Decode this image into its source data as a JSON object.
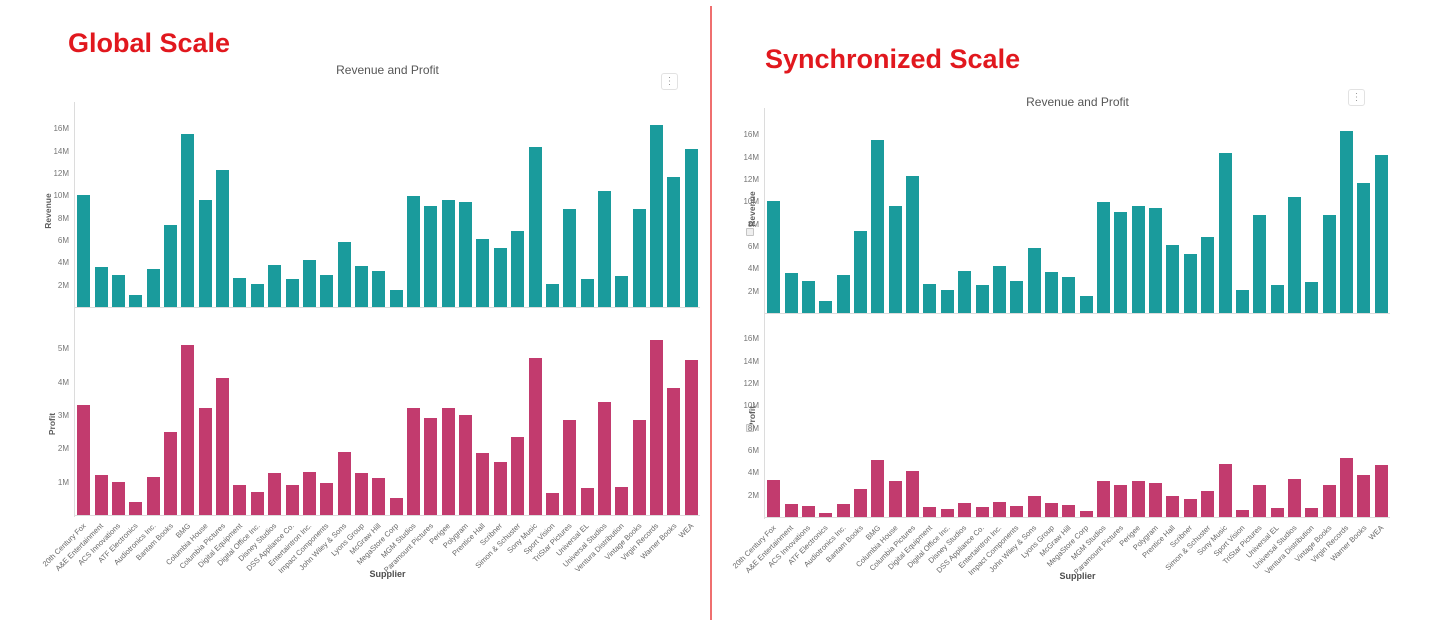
{
  "page": {
    "left_heading": "Global Scale",
    "right_heading": "Synchronized Scale",
    "menu_icon_glyph": "⋮"
  },
  "colors": {
    "revenue": "#1a9b9c",
    "profit": "#c23b6e",
    "heading_red": "#e1181e",
    "divider_red": "#ef6f6f"
  },
  "chart_data": [
    {
      "panel": "Global Scale",
      "type": "bar",
      "title": "Revenue and Profit",
      "xlabel": "Supplier",
      "legend": "none",
      "grid": false,
      "categories": [
        "20th Century Fox",
        "A&E Entertainment",
        "ACS Innovations",
        "ATF Electronics",
        "Audiotronics Inc.",
        "Bantam Books",
        "BMG",
        "Columbia House",
        "Columbia Pictures",
        "Digital Equipment",
        "Digital Office Inc.",
        "Disney Studios",
        "DSS Appliance Co.",
        "Entertaintron Inc.",
        "Impact Components",
        "John Wiley & Sons",
        "Lyons Group",
        "McGraw Hill",
        "MegaStore Corp",
        "MGM Studios",
        "Paramount Pictures",
        "Perigee",
        "Polygram",
        "Prentice Hall",
        "Scribner",
        "Simon & Schuster",
        "Sony Music",
        "Sport Vision",
        "TriStar Pictures",
        "Universal EL",
        "Universal Studios",
        "Ventura Distribution",
        "Vintage Books",
        "Virgin Records",
        "Warner Books",
        "WEA"
      ],
      "series": [
        {
          "name": "Revenue",
          "color_key": "revenue",
          "unit": "M",
          "ylim": [
            0,
            17
          ],
          "yticks": [
            2,
            4,
            6,
            8,
            10,
            12,
            14,
            16
          ],
          "values": [
            10,
            3.6,
            2.9,
            1.1,
            3.4,
            7.3,
            15.5,
            9.6,
            12.3,
            2.6,
            2.1,
            3.8,
            2.5,
            4.2,
            2.9,
            5.8,
            3.7,
            3.2,
            1.5,
            9.9,
            9,
            9.6,
            9.4,
            6.1,
            5.3,
            6.8,
            14.3,
            2.1,
            8.8,
            2.5,
            10.4,
            2.8,
            8.8,
            16.3,
            11.6,
            14.1
          ]
        },
        {
          "name": "Profit",
          "color_key": "profit",
          "unit": "M",
          "ylim": [
            0,
            5.4
          ],
          "yticks": [
            1,
            2,
            3,
            4,
            5
          ],
          "values": [
            3.3,
            1.2,
            1,
            0.4,
            1.15,
            2.5,
            5.1,
            3.2,
            4.1,
            0.9,
            0.7,
            1.25,
            0.9,
            1.3,
            0.95,
            1.9,
            1.25,
            1.1,
            0.5,
            3.2,
            2.9,
            3.2,
            3,
            1.85,
            1.6,
            2.35,
            4.7,
            0.65,
            2.85,
            0.8,
            3.4,
            0.85,
            2.85,
            5.25,
            3.8,
            4.65
          ]
        }
      ]
    },
    {
      "panel": "Synchronized Scale",
      "type": "bar",
      "title": "Revenue and Profit",
      "xlabel": "Supplier",
      "legend": "none",
      "grid": false,
      "categories": [
        "20th Century Fox",
        "A&E Entertainment",
        "ACS Innovations",
        "ATF Electronics",
        "Audiotronics Inc.",
        "Bantam Books",
        "BMG",
        "Columbia House",
        "Columbia Pictures",
        "Digital Equipment",
        "Digital Office Inc.",
        "Disney Studios",
        "DSS Appliance Co.",
        "Entertaintron Inc.",
        "Impact Components",
        "John Wiley & Sons",
        "Lyons Group",
        "McGraw Hill",
        "MegaStore Corp",
        "MGM Studios",
        "Paramount Pictures",
        "Perigee",
        "Polygram",
        "Prentice Hall",
        "Scribner",
        "Simon & Schuster",
        "Sony Music",
        "Sport Vision",
        "TriStar Pictures",
        "Universal EL",
        "Universal Studios",
        "Ventura Distribution",
        "Vintage Books",
        "Virgin Records",
        "Warner Books",
        "WEA"
      ],
      "series": [
        {
          "name": "Revenue",
          "color_key": "revenue",
          "unit": "M",
          "ylim": [
            0,
            17
          ],
          "yticks": [
            2,
            4,
            6,
            8,
            10,
            12,
            14,
            16
          ],
          "values": [
            10,
            3.6,
            2.9,
            1.1,
            3.4,
            7.3,
            15.5,
            9.6,
            12.3,
            2.6,
            2.1,
            3.8,
            2.5,
            4.2,
            2.9,
            5.8,
            3.7,
            3.2,
            1.5,
            9.9,
            9,
            9.6,
            9.4,
            6.1,
            5.3,
            6.8,
            14.3,
            2.1,
            8.8,
            2.5,
            10.4,
            2.8,
            8.8,
            16.3,
            11.6,
            14.1
          ]
        },
        {
          "name": "Profit",
          "color_key": "profit",
          "unit": "M",
          "ylim": [
            0,
            17
          ],
          "yticks": [
            2,
            4,
            6,
            8,
            10,
            12,
            14,
            16
          ],
          "values": [
            3.3,
            1.2,
            1,
            0.4,
            1.15,
            2.5,
            5.1,
            3.2,
            4.1,
            0.9,
            0.7,
            1.25,
            0.9,
            1.3,
            0.95,
            1.9,
            1.25,
            1.1,
            0.5,
            3.2,
            2.9,
            3.2,
            3,
            1.85,
            1.6,
            2.35,
            4.7,
            0.65,
            2.85,
            0.8,
            3.4,
            0.85,
            2.85,
            5.25,
            3.8,
            4.65
          ]
        }
      ]
    }
  ]
}
